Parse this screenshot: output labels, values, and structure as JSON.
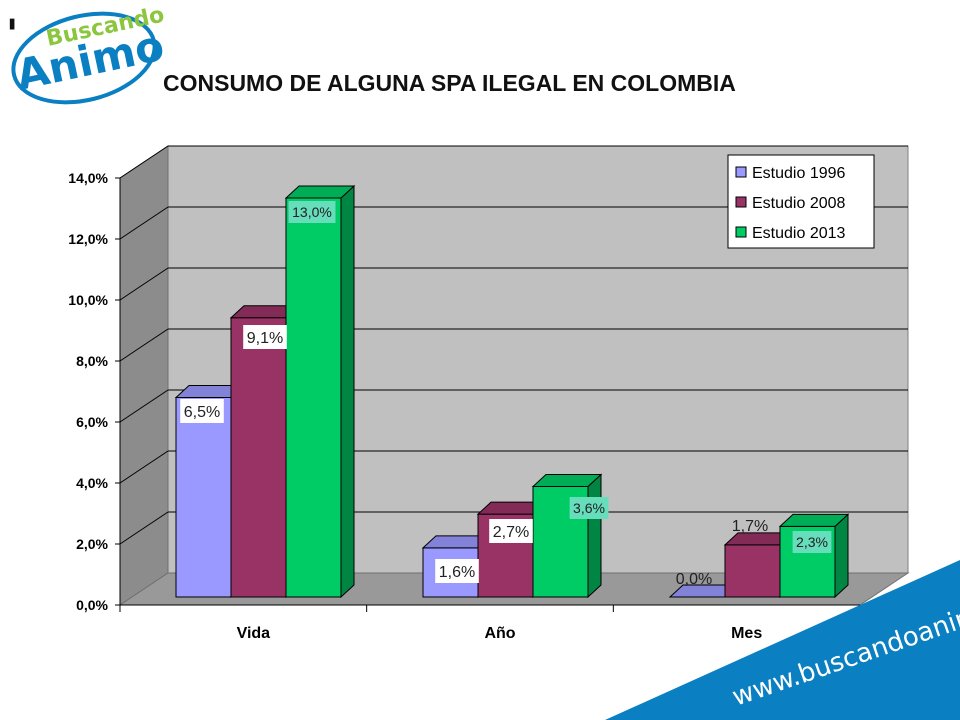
{
  "logo": {
    "line1": "Buscando",
    "line2": "Animo",
    "mark": "'"
  },
  "website": "www.buscandoanimo.org",
  "colors": {
    "brand_blue": "#0a7fc2",
    "logo_green": "#8cc63f",
    "s1996": "#9999ff",
    "s2008": "#993366",
    "s2013": "#00cc66"
  },
  "chart_data": {
    "type": "bar",
    "title": "CONSUMO DE ALGUNA SPA ILEGAL EN COLOMBIA",
    "categories": [
      "Vida",
      "Año",
      "Mes"
    ],
    "series": [
      {
        "name": "Estudio 1996",
        "values": [
          6.5,
          1.6,
          0.0
        ],
        "labels": [
          "6,5%",
          "1,6%",
          "0,0%"
        ],
        "color": "#9999ff"
      },
      {
        "name": "Estudio 2008",
        "values": [
          9.1,
          2.7,
          1.7
        ],
        "labels": [
          "9,1%",
          "2,7%",
          "1,7%"
        ],
        "color": "#993366"
      },
      {
        "name": "Estudio 2013",
        "values": [
          13.0,
          3.6,
          2.3
        ],
        "labels": [
          "13,0%",
          "3,6%",
          "2,3%"
        ],
        "color": "#00cc66"
      }
    ],
    "ylim": [
      0,
      14
    ],
    "yticks": [
      "0,0%",
      "2,0%",
      "4,0%",
      "6,0%",
      "8,0%",
      "10,0%",
      "12,0%",
      "14,0%"
    ],
    "grid": true,
    "legend": "top-right",
    "three_d": true
  }
}
